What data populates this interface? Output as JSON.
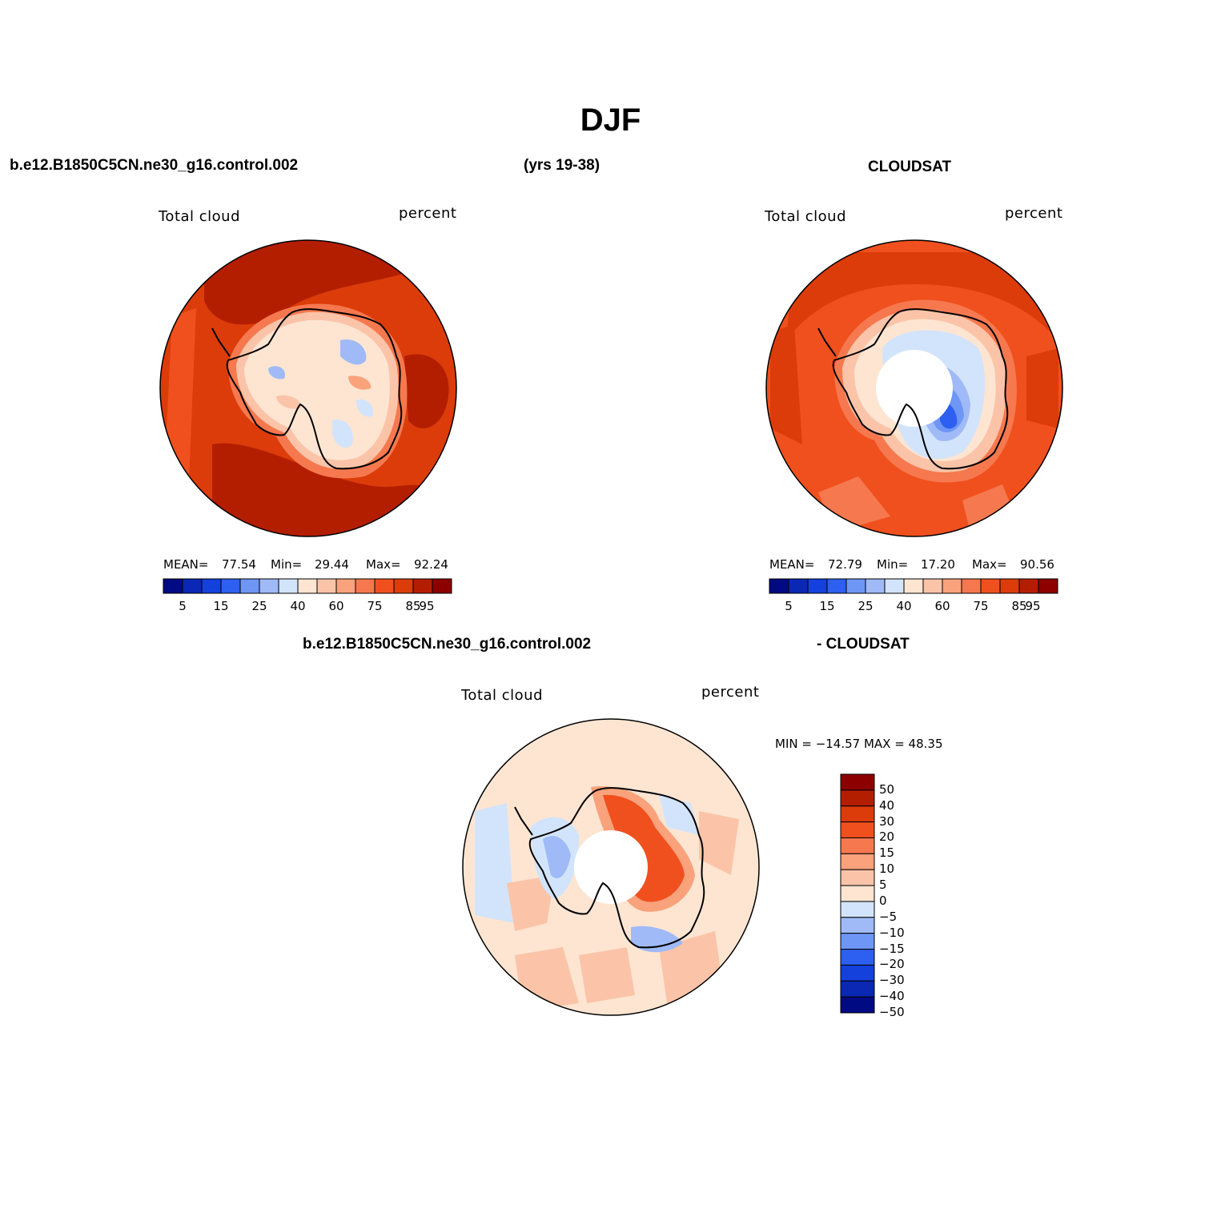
{
  "title": "DJF",
  "panels": {
    "model": {
      "case": "b.e12.B1850C5CN.ne30_g16.control.002",
      "years": "(yrs 19-38)",
      "variable": "Total cloud",
      "units": "percent",
      "stats": {
        "mean_label": "MEAN=",
        "mean": "77.54",
        "min_label": "Min=",
        "min": "29.44",
        "max_label": "Max=",
        "max": "92.24"
      }
    },
    "obs": {
      "case": "CLOUDSAT",
      "variable": "Total cloud",
      "units": "percent",
      "stats": {
        "mean_label": "MEAN=",
        "mean": "72.79",
        "min_label": "Min=",
        "min": "17.20",
        "max_label": "Max=",
        "max": "90.56"
      }
    },
    "diff": {
      "case": "b.e12.B1850C5CN.ne30_g16.control.002",
      "case2": "- CLOUDSAT",
      "variable": "Total cloud",
      "units": "percent",
      "minmax": "MIN = −14.57 MAX =  48.35"
    }
  },
  "colorbar_abs": {
    "ticks": [
      "5",
      "15",
      "25",
      "40",
      "60",
      "75",
      "85",
      "95"
    ],
    "colors": [
      "#000a82",
      "#0a28b4",
      "#1440dc",
      "#2d5ff0",
      "#6e96f5",
      "#9fbaf7",
      "#d2e4fb",
      "#fde5d2",
      "#fbc4a8",
      "#f9a27c",
      "#f6784f",
      "#f0501e",
      "#dc3c0a",
      "#b41e00",
      "#8c0000"
    ]
  },
  "colorbar_diff": {
    "labels": [
      "50",
      "40",
      "30",
      "20",
      "15",
      "10",
      "5",
      "0",
      "−5",
      "−10",
      "−15",
      "−20",
      "−30",
      "−40",
      "−50"
    ],
    "colors": [
      "#8c0000",
      "#b41e00",
      "#dc3c0a",
      "#f0501e",
      "#f6784f",
      "#f9a27c",
      "#fbc4a8",
      "#fde5d2",
      "#d2e4fb",
      "#9fbaf7",
      "#6e96f5",
      "#2d5ff0",
      "#1440dc",
      "#0a28b4",
      "#000a82"
    ]
  }
}
